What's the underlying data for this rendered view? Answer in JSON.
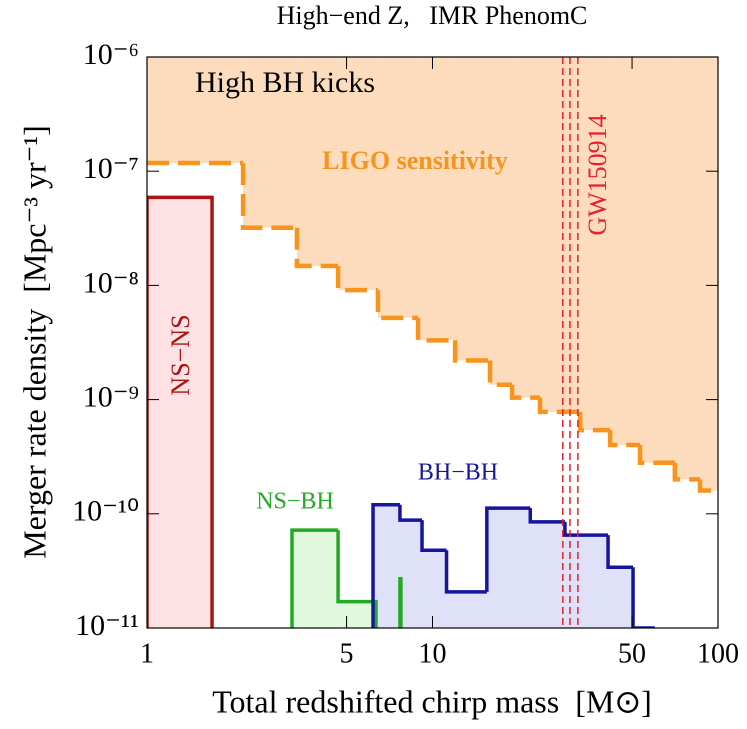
{
  "chart_data": {
    "type": "step",
    "title": "High−end Z,   IMR PhenomC",
    "xlabel": "Total redshifted chirp mass  [M⊙]",
    "ylabel": "Merger rate density  [Mpc⁻³ yr⁻¹]",
    "xscale": "log",
    "yscale": "log",
    "xlim": [
      1,
      100
    ],
    "ylim": [
      1e-11,
      1e-06
    ],
    "xticks": [
      1,
      5,
      10,
      50,
      100
    ],
    "yticks": [
      {
        "value": 1e-11,
        "label": "10⁻¹¹"
      },
      {
        "value": 1e-10,
        "label": "10⁻¹⁰"
      },
      {
        "value": 1e-09,
        "label": "10⁻⁹"
      },
      {
        "value": 1e-08,
        "label": "10⁻⁸"
      },
      {
        "value": 1e-07,
        "label": "10⁻⁷"
      },
      {
        "value": 1e-06,
        "label": "10⁻⁶"
      }
    ],
    "series": [
      {
        "name": "LIGO sensitivity",
        "color": "#f7941d",
        "fill": "#fcdcbd",
        "shade": "above",
        "dashed": true,
        "bins": [
          1,
          2.17,
          3.35,
          4.67,
          6.44,
          8.9,
          12,
          15.9,
          19,
          23.8,
          32.9,
          41.9,
          53.3,
          70.6,
          86.5,
          100
        ],
        "values": [
          1.18e-07,
          3.2e-08,
          1.48e-08,
          9.1e-09,
          5.2e-09,
          3.3e-09,
          2.2e-09,
          1.35e-09,
          1.04e-09,
          7.8e-10,
          5.4e-10,
          4e-10,
          2.8e-10,
          2e-10,
          1.6e-10
        ]
      },
      {
        "name": "NS−NS",
        "color": "#aa1414",
        "fill": "#fde1e3",
        "shade": "below",
        "dashed": false,
        "bins": [
          1,
          1.69
        ],
        "values": [
          5.9e-08
        ]
      },
      {
        "name": "NS−BH",
        "color": "#22aa22",
        "fill": "#e0f8dc",
        "shade": "below",
        "dashed": false,
        "bins": [
          3.22,
          4.67,
          6.34,
          7.69,
          7.75
        ],
        "values": [
          7.2e-11,
          1.7e-11,
          null,
          2.7e-11
        ]
      },
      {
        "name": "BH−BH",
        "color": "#16169c",
        "fill": "#dfe1f9",
        "shade": "below",
        "dashed": false,
        "bins": [
          6.19,
          7.69,
          9.19,
          11.2,
          15.5,
          22,
          29.1,
          41.2,
          50.4,
          60.1
        ],
        "values": [
          1.2e-10,
          8.8e-11,
          4.8e-11,
          2.07e-11,
          1.12e-10,
          8.5e-11,
          6.5e-11,
          3.4e-11,
          1e-11
        ]
      }
    ],
    "event": {
      "label": "GW150914",
      "color": "#e8202a",
      "x": [
        28.6,
        30.3,
        32.3
      ]
    },
    "annotation": "High BH kicks"
  }
}
